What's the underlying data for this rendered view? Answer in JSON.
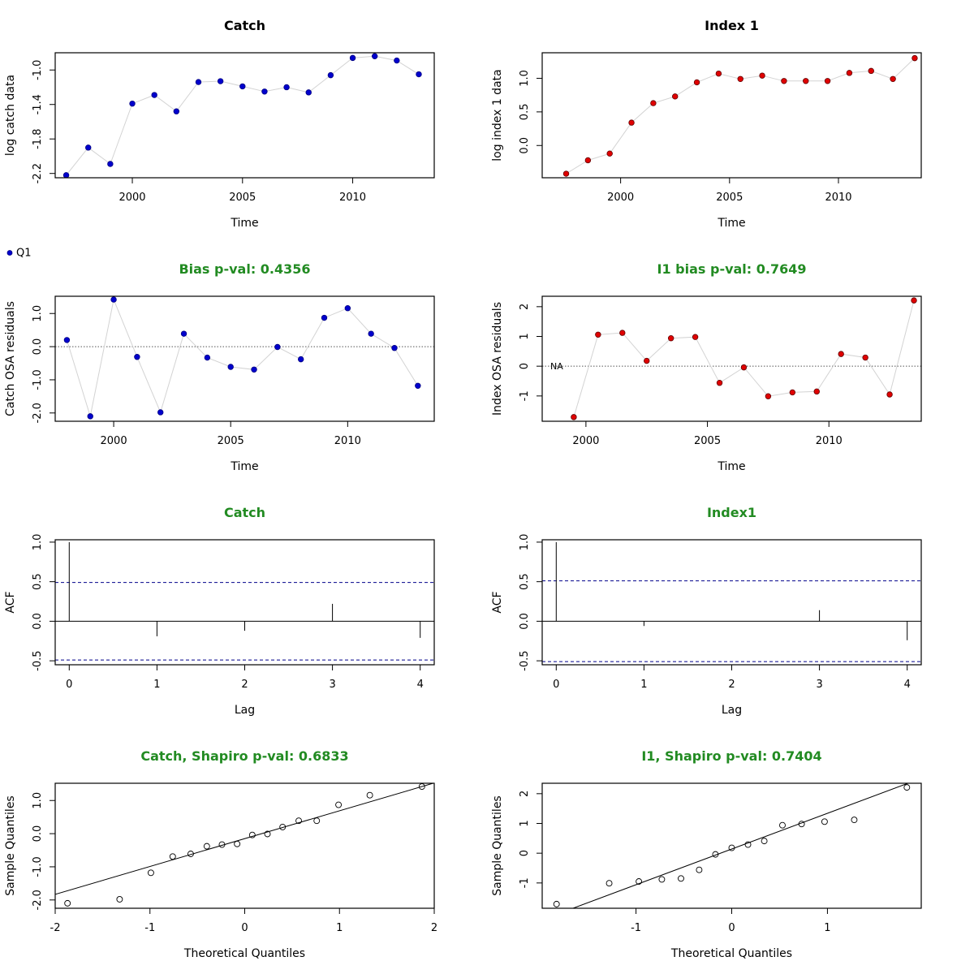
{
  "colors": {
    "green_title": "#228B22",
    "catch_point": "#0000CD",
    "index_point": "#E00000",
    "ref_line_blue": "#00008B",
    "series_line": "#D3D3D3"
  },
  "legend": {
    "label": "Q1"
  },
  "chart_data": [
    {
      "type": "line",
      "title": "Catch",
      "xlabel": "Time",
      "ylabel": "log catch data",
      "xlim": [
        1996.5,
        2013.7
      ],
      "ylim": [
        -2.25,
        -0.8
      ],
      "xticks": [
        2000,
        2005,
        2010
      ],
      "yticks": [
        -2.2,
        -1.8,
        -1.4,
        -1.0
      ],
      "x": [
        1997,
        1998,
        1999,
        2000,
        2001,
        2002,
        2003,
        2004,
        2005,
        2006,
        2007,
        2008,
        2009,
        2010,
        2011,
        2012,
        2013
      ],
      "y": [
        -2.22,
        -1.9,
        -2.09,
        -1.39,
        -1.29,
        -1.48,
        -1.14,
        -1.13,
        -1.19,
        -1.25,
        -1.2,
        -1.26,
        -1.06,
        -0.86,
        -0.84,
        -0.89,
        -1.05
      ],
      "point_color": "#0000CD"
    },
    {
      "type": "line",
      "title": "Index 1",
      "xlabel": "Time",
      "ylabel": "log index 1 data",
      "xlim": [
        1996.4,
        2013.8
      ],
      "ylim": [
        -0.48,
        1.38
      ],
      "xticks": [
        2000,
        2005,
        2010
      ],
      "yticks": [
        0.0,
        0.5,
        1.0
      ],
      "x": [
        1997.5,
        1998.5,
        1999.5,
        2000.5,
        2001.5,
        2002.5,
        2003.5,
        2004.5,
        2005.5,
        2006.5,
        2007.5,
        2008.5,
        2009.5,
        2010.5,
        2011.5,
        2012.5,
        2013.5
      ],
      "y": [
        -0.42,
        -0.22,
        -0.12,
        0.34,
        0.63,
        0.73,
        0.94,
        1.07,
        0.99,
        1.04,
        0.96,
        0.96,
        0.96,
        1.08,
        1.11,
        0.99,
        1.3
      ],
      "point_color": "#E00000"
    },
    {
      "type": "line",
      "title": "Bias p-val: 0.4356",
      "xlabel": "Time",
      "ylabel": "Catch OSA residuals",
      "xlim": [
        1997.5,
        2013.7
      ],
      "ylim": [
        -2.25,
        1.52
      ],
      "xticks": [
        2000,
        2005,
        2010
      ],
      "yticks": [
        -2.0,
        -1.0,
        0.0,
        1.0
      ],
      "ytick_labels": [
        "-2.0",
        "-1.0",
        "0.0",
        "1.0"
      ],
      "x": [
        1998,
        1999,
        2000,
        2001,
        2002,
        2003,
        2004,
        2005,
        2006,
        2007,
        2008,
        2009,
        2010,
        2011,
        2012,
        2013
      ],
      "y": [
        0.2,
        -2.1,
        1.42,
        -0.31,
        -1.98,
        0.39,
        -0.33,
        -0.61,
        -0.69,
        -0.01,
        -0.38,
        0.87,
        1.16,
        0.39,
        -0.04,
        -1.18
      ],
      "point_color": "#0000CD"
    },
    {
      "type": "line",
      "title": "I1 bias p-val: 0.7649",
      "xlabel": "Time",
      "ylabel": "Index OSA residuals",
      "xlim": [
        1998.2,
        2013.8
      ],
      "ylim": [
        -1.85,
        2.35
      ],
      "xticks": [
        2000,
        2005,
        2010
      ],
      "yticks": [
        -1,
        0,
        1,
        2
      ],
      "ytick_labels": [
        "-1",
        "0",
        "1",
        "2"
      ],
      "x": [
        1999.5,
        2000.5,
        2001.5,
        2002.5,
        2003.5,
        2004.5,
        2005.5,
        2006.5,
        2007.5,
        2008.5,
        2009.5,
        2010.5,
        2011.5,
        2012.5,
        2013.5
      ],
      "y": [
        -1.71,
        1.06,
        1.12,
        0.18,
        0.94,
        0.98,
        -0.56,
        -0.04,
        -1.01,
        -0.88,
        -0.85,
        0.41,
        0.29,
        -0.95,
        2.21
      ],
      "point_color": "#E00000",
      "annotation": "NA"
    },
    {
      "type": "bar",
      "title": "Catch",
      "xlabel": "Lag",
      "ylabel": "ACF",
      "xlim": [
        -0.16,
        4.16
      ],
      "ylim": [
        -0.55,
        1.03
      ],
      "xticks": [
        0,
        1,
        2,
        3,
        4
      ],
      "yticks": [
        -0.5,
        0.0,
        0.5,
        1.0
      ],
      "ytick_labels": [
        "-0.5",
        "0.0",
        "0.5",
        "1.0"
      ],
      "lags": [
        0,
        1,
        2,
        3,
        4
      ],
      "values": [
        1.0,
        -0.19,
        -0.12,
        0.22,
        -0.21
      ],
      "ci": 0.49
    },
    {
      "type": "bar",
      "title": "Index1",
      "xlabel": "Lag",
      "ylabel": "ACF",
      "xlim": [
        -0.16,
        4.16
      ],
      "ylim": [
        -0.55,
        1.03
      ],
      "xticks": [
        0,
        1,
        2,
        3,
        4
      ],
      "yticks": [
        -0.5,
        0.0,
        0.5,
        1.0
      ],
      "ytick_labels": [
        "-0.5",
        "0.0",
        "0.5",
        "1.0"
      ],
      "lags": [
        0,
        1,
        2,
        3,
        4
      ],
      "values": [
        1.0,
        -0.06,
        0.0,
        0.14,
        -0.24
      ],
      "ci": 0.51
    },
    {
      "type": "scatter",
      "title": "Catch, Shapiro p-val: 0.6833",
      "xlabel": "Theoretical Quantiles",
      "ylabel": "Sample Quantiles",
      "xlim": [
        -2.0,
        2.0
      ],
      "ylim": [
        -2.25,
        1.52
      ],
      "xticks": [
        -2,
        -1,
        0,
        1,
        2
      ],
      "yticks": [
        -2.0,
        -1.0,
        0.0,
        1.0
      ],
      "ytick_labels": [
        "-2.0",
        "-1.0",
        "0.0",
        "1.0"
      ],
      "x": [
        -1.87,
        -1.32,
        -0.99,
        -0.76,
        -0.57,
        -0.4,
        -0.24,
        -0.08,
        0.08,
        0.24,
        0.4,
        0.57,
        0.76,
        0.99,
        1.32,
        1.87
      ],
      "y": [
        -2.1,
        -1.98,
        -1.18,
        -0.69,
        -0.61,
        -0.38,
        -0.33,
        -0.31,
        -0.04,
        -0.01,
        0.2,
        0.39,
        0.39,
        0.87,
        1.16,
        1.42
      ],
      "qq_line": {
        "intercept": -0.15,
        "slope": 0.84
      }
    },
    {
      "type": "scatter",
      "title": "I1, Shapiro p-val: 0.7404",
      "xlabel": "Theoretical Quantiles",
      "ylabel": "Sample Quantiles",
      "xlim": [
        -1.98,
        1.98
      ],
      "ylim": [
        -1.85,
        2.35
      ],
      "xticks": [
        -1,
        0,
        1
      ],
      "yticks": [
        -1,
        0,
        1,
        2
      ],
      "ytick_labels": [
        "-1",
        "0",
        "1",
        "2"
      ],
      "x": [
        -1.83,
        -1.28,
        -0.97,
        -0.73,
        -0.53,
        -0.34,
        -0.17,
        0.0,
        0.17,
        0.34,
        0.53,
        0.73,
        0.97,
        1.28,
        1.83
      ],
      "y": [
        -1.71,
        -1.01,
        -0.95,
        -0.88,
        -0.85,
        -0.56,
        -0.04,
        0.18,
        0.29,
        0.41,
        0.94,
        0.98,
        1.06,
        1.12,
        2.21
      ],
      "qq_line": {
        "intercept": 0.14,
        "slope": 1.2
      }
    }
  ]
}
